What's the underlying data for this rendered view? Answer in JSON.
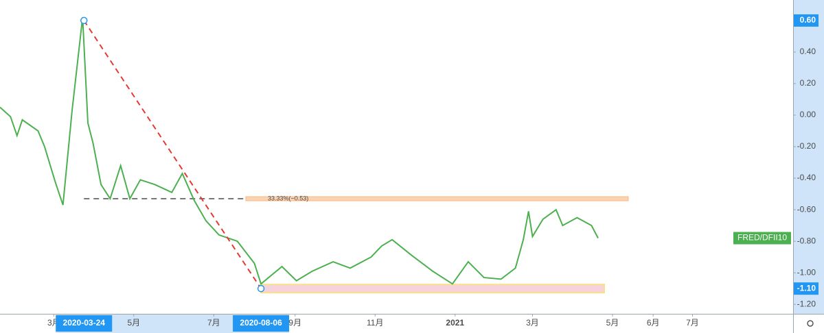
{
  "chart_data": {
    "type": "line",
    "x": [
      "2020-01-20",
      "2020-01-28",
      "2020-02-02",
      "2020-02-06",
      "2020-02-18",
      "2020-02-23",
      "2020-03-02",
      "2020-03-08",
      "2020-03-15",
      "2020-03-23",
      "2020-03-27",
      "2020-03-31",
      "2020-04-06",
      "2020-04-13",
      "2020-04-21",
      "2020-04-28",
      "2020-05-06",
      "2020-05-17",
      "2020-05-30",
      "2020-06-07",
      "2020-06-16",
      "2020-06-25",
      "2020-07-05",
      "2020-07-19",
      "2020-08-01",
      "2020-08-06",
      "2020-08-22",
      "2020-09-02",
      "2020-09-14",
      "2020-09-30",
      "2020-10-13",
      "2020-10-29",
      "2020-11-06",
      "2020-11-14",
      "2020-11-29",
      "2020-12-15",
      "2020-12-30",
      "2021-01-11",
      "2021-01-23",
      "2021-02-05",
      "2021-02-16",
      "2021-02-22",
      "2021-02-26",
      "2021-03-01",
      "2021-03-09",
      "2021-03-19",
      "2021-03-24",
      "2021-04-04",
      "2021-04-15",
      "2021-04-20"
    ],
    "series": [
      {
        "name": "FRED/DFII10",
        "color": "#4caf50",
        "values": [
          0.05,
          -0.01,
          -0.13,
          -0.03,
          -0.1,
          -0.2,
          -0.42,
          -0.57,
          0.03,
          0.62,
          -0.05,
          -0.18,
          -0.44,
          -0.53,
          -0.32,
          -0.53,
          -0.41,
          -0.44,
          -0.49,
          -0.37,
          -0.54,
          -0.67,
          -0.76,
          -0.8,
          -0.94,
          -1.07,
          -0.96,
          -1.05,
          -0.99,
          -0.93,
          -0.97,
          -0.9,
          -0.83,
          -0.79,
          -0.89,
          -0.99,
          -1.07,
          -0.93,
          -1.03,
          -1.04,
          -0.97,
          -0.79,
          -0.61,
          -0.77,
          -0.66,
          -0.6,
          -0.7,
          -0.65,
          -0.7,
          -0.78
        ]
      }
    ],
    "xlim": [
      "2020-01-20",
      "2021-09-16"
    ],
    "xticks": [
      {
        "value": "2020-03-01",
        "label": "3月"
      },
      {
        "value": "2020-05-01",
        "label": "5月"
      },
      {
        "value": "2020-07-01",
        "label": "7月"
      },
      {
        "value": "2020-09-01",
        "label": "9月"
      },
      {
        "value": "2020-11-01",
        "label": "11月"
      },
      {
        "value": "2021-01-01",
        "label": "2021"
      },
      {
        "value": "2021-03-01",
        "label": "3月"
      },
      {
        "value": "2021-05-01",
        "label": "5月"
      },
      {
        "value": "2021-06-01",
        "label": "6月"
      },
      {
        "value": "2021-07-01",
        "label": "7月"
      }
    ],
    "ylim": [
      -1.26,
      0.73
    ],
    "yticks": [
      {
        "value": 0.4,
        "label": "0.40"
      },
      {
        "value": 0.2,
        "label": "0.20"
      },
      {
        "value": 0,
        "label": "0.00"
      },
      {
        "value": -0.2,
        "label": "-0.20"
      },
      {
        "value": -0.4,
        "label": "-0.40"
      },
      {
        "value": -0.6,
        "label": "-0.60"
      },
      {
        "value": -0.8,
        "label": "-0.80"
      },
      {
        "value": -1.0,
        "label": "-1.00"
      },
      {
        "value": -1.2,
        "label": "-1.20"
      }
    ],
    "drawing": {
      "start": {
        "x": "2020-03-24",
        "y": {
          "value": 0.6,
          "label": "0.60"
        }
      },
      "end": {
        "x": "2020-08-06",
        "y": {
          "value": -1.1,
          "label": "-1.10"
        }
      },
      "level": {
        "value": -0.53,
        "label": "33.33%(−0.53)"
      }
    }
  }
}
